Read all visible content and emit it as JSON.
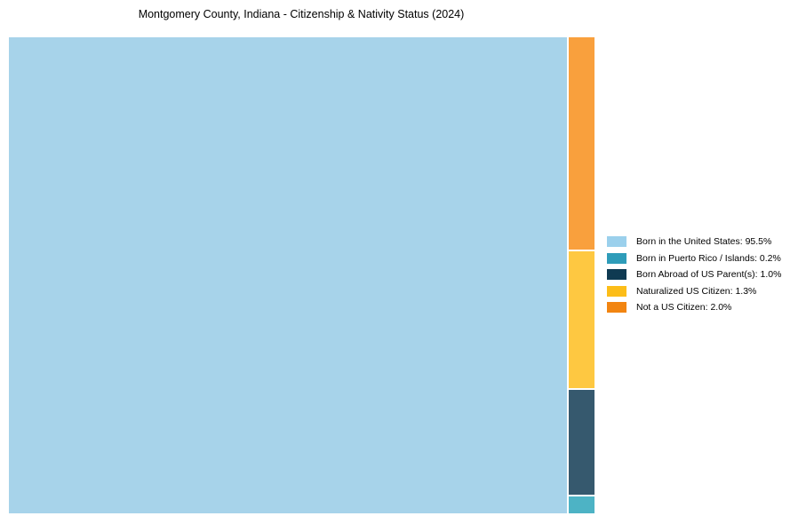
{
  "title": "Montgomery County, Indiana - Citizenship & Nativity Status (2024)",
  "chart_data": {
    "type": "treemap",
    "title": "Montgomery County, Indiana - Citizenship & Nativity Status (2024)",
    "unit": "%",
    "legend_position": "right-middle",
    "layout_note": "large rect left; small categories stacked in narrow right column, order top-to-bottom: Not a US Citizen, Naturalized US Citizen, Born Abroad of US Parent(s), Born in Puerto Rico / Islands",
    "segments": [
      {
        "label": "Born in the United States",
        "value": 95.5,
        "text": "Born in the United States: 95.5%",
        "chart_color": "#a7d3ea",
        "legend_color": "#9bd0ec"
      },
      {
        "label": "Born in Puerto Rico / Islands",
        "value": 0.2,
        "text": "Born in Puerto Rico / Islands: 0.2%",
        "chart_color": "#4db3c5",
        "legend_color": "#2e9cb9"
      },
      {
        "label": "Born Abroad of US Parent(s)",
        "value": 1.0,
        "text": "Born Abroad of US Parent(s): 1.0%",
        "chart_color": "#36596e",
        "legend_color": "#0f3a52"
      },
      {
        "label": "Naturalized US Citizen",
        "value": 1.3,
        "text": "Naturalized US Citizen: 1.3%",
        "chart_color": "#fec841",
        "legend_color": "#fcbd18"
      },
      {
        "label": "Not a US Citizen",
        "value": 2.0,
        "text": "Not a US Citizen: 2.0%",
        "chart_color": "#f9a03d",
        "legend_color": "#f28511"
      }
    ]
  }
}
